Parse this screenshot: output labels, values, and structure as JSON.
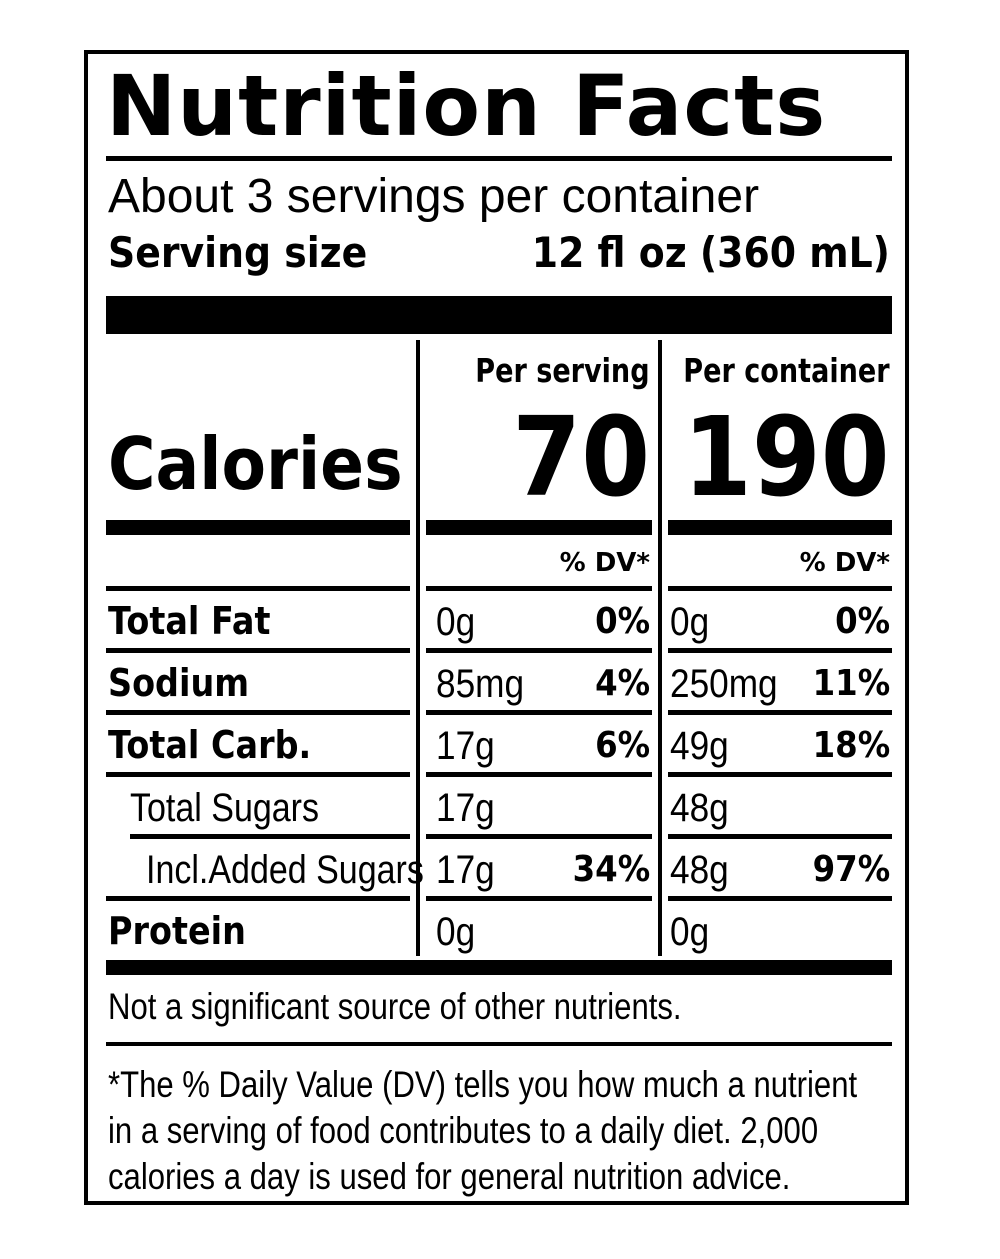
{
  "title": "Nutrition Facts",
  "servings_per_container": "About 3 servings per container",
  "serving_size": {
    "label": "Serving size",
    "value": "12 fl oz (360 mL)"
  },
  "columns": {
    "per_serving": "Per serving",
    "per_container": "Per container"
  },
  "calories": {
    "label": "Calories",
    "per_serving": "70",
    "per_container": "190"
  },
  "dv_header": {
    "per_serving": "% DV*",
    "per_container": "% DV*"
  },
  "nutrients": [
    {
      "name": "Total Fat",
      "serving_amount": "0g",
      "serving_dv": "0%",
      "container_amount": "0g",
      "container_dv": "0%"
    },
    {
      "name": "Sodium",
      "serving_amount": "85mg",
      "serving_dv": "4%",
      "container_amount": "250mg",
      "container_dv": "11%"
    },
    {
      "name": "Total Carb.",
      "serving_amount": "17g",
      "serving_dv": "6%",
      "container_amount": "49g",
      "container_dv": "18%"
    },
    {
      "name": "Total Sugars",
      "serving_amount": "17g",
      "serving_dv": "",
      "container_amount": "48g",
      "container_dv": ""
    },
    {
      "name": "Incl.Added Sugars",
      "serving_amount": "17g",
      "serving_dv": "34%",
      "container_amount": "48g",
      "container_dv": "97%"
    },
    {
      "name": "Protein",
      "serving_amount": "0g",
      "serving_dv": "",
      "container_amount": "0g",
      "container_dv": ""
    }
  ],
  "note": "Not a significant source of other nutrients.",
  "footnote": "*The % Daily Value (DV) tells you how much a nutrient in a serving of food contributes to a daily diet. 2,000 calories a day is used for general nutrition advice."
}
